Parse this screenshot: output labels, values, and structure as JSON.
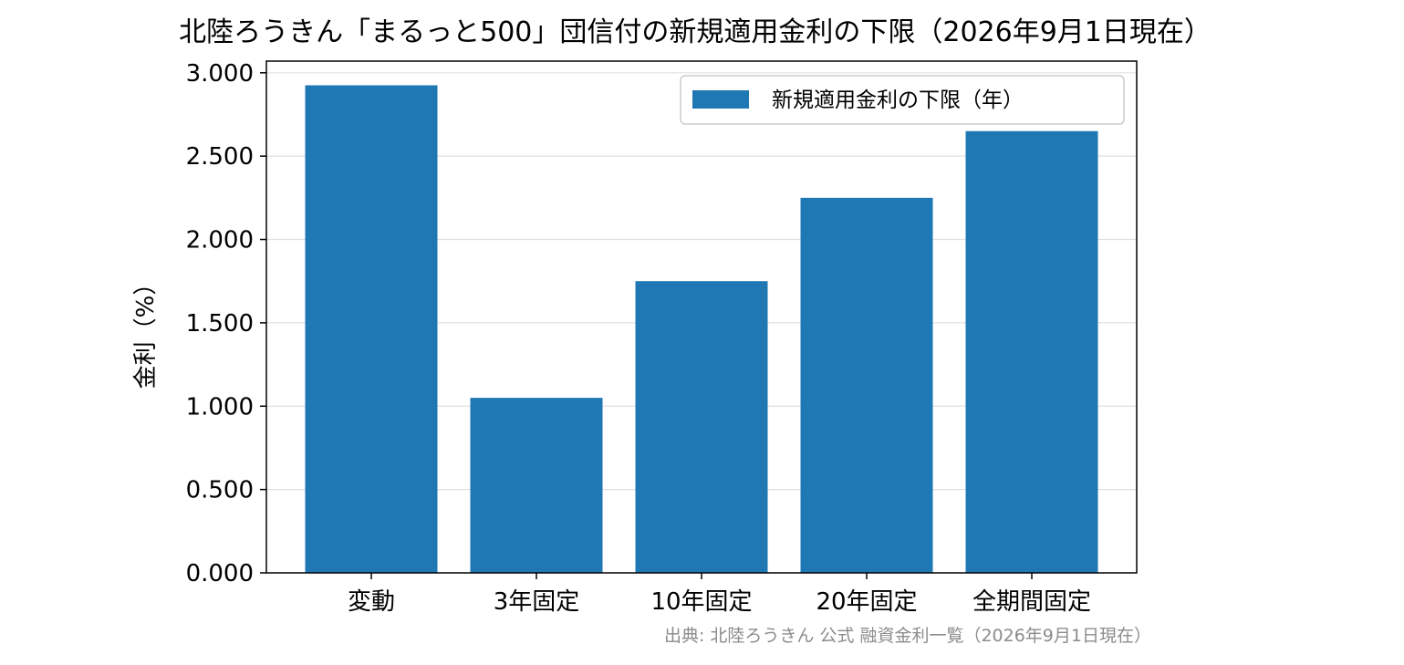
{
  "chart_data": {
    "type": "bar",
    "title": "北陸ろうきん「まるっと500」団信付の新規適用金利の下限（2026年9月1日現在）",
    "ylabel": "金利（%）",
    "xlabel": "",
    "categories": [
      "変動",
      "3年固定",
      "10年固定",
      "20年固定",
      "全期間固定"
    ],
    "series": [
      {
        "name": "新規適用金利の下限（年）",
        "values": [
          2.925,
          1.05,
          1.75,
          2.25,
          2.65
        ],
        "color": "#1f77b4"
      }
    ],
    "ylim": [
      0,
      3.07
    ],
    "yticks": [
      "0.000",
      "0.500",
      "1.000",
      "1.500",
      "2.000",
      "2.500",
      "3.000"
    ],
    "ytick_values": [
      0,
      0.5,
      1.0,
      1.5,
      2.0,
      2.5,
      3.0
    ],
    "grid": "horizontal",
    "legend_position": "top-right",
    "source_note": "出典: 北陸ろうきん 公式 融資金利一覧（2026年9月1日現在）"
  }
}
